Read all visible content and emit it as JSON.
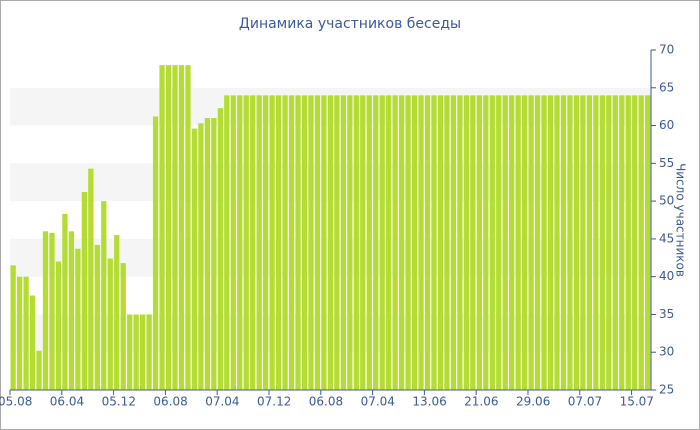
{
  "chart_data": {
    "type": "bar",
    "title": "Динамика участников беседы",
    "y_label": "Число участников",
    "categories": [
      "05.08",
      null,
      null,
      null,
      null,
      null,
      null,
      null,
      "06.04",
      null,
      null,
      null,
      null,
      null,
      null,
      null,
      "05.12",
      null,
      null,
      null,
      null,
      null,
      null,
      null,
      "06.08",
      null,
      null,
      null,
      null,
      null,
      null,
      null,
      "07.04",
      null,
      null,
      null,
      null,
      null,
      null,
      null,
      "07.12",
      null,
      null,
      null,
      null,
      null,
      null,
      null,
      "06.08",
      null,
      null,
      null,
      null,
      null,
      null,
      null,
      "07.04",
      null,
      null,
      null,
      null,
      null,
      null,
      null,
      "13.06",
      null,
      null,
      null,
      null,
      null,
      null,
      null,
      "21.06",
      null,
      null,
      null,
      null,
      null,
      null,
      null,
      "29.06",
      null,
      null,
      null,
      null,
      null,
      null,
      null,
      "07.07",
      null,
      null,
      null,
      null,
      null,
      null,
      null,
      "15.07",
      null,
      null
    ],
    "values": [
      41.5,
      40,
      40,
      37.5,
      30.2,
      46,
      45.8,
      42,
      48.3,
      46,
      43.7,
      51.2,
      54.3,
      44.2,
      50,
      42.4,
      45.5,
      41.8,
      35,
      35,
      35,
      35,
      61.2,
      68,
      68,
      68,
      68,
      68,
      59.6,
      60.3,
      61,
      61,
      62.3,
      64,
      64,
      64,
      64,
      64,
      64,
      64,
      64,
      64,
      64,
      64,
      64,
      64,
      64,
      64,
      64,
      64,
      64,
      64,
      64,
      64,
      64,
      64,
      64,
      64,
      64,
      64,
      64,
      64,
      64,
      64,
      64,
      64,
      64,
      64,
      64,
      64,
      64,
      64,
      64,
      64,
      64,
      64,
      64,
      64,
      64,
      64,
      64,
      64,
      64,
      64,
      64,
      64,
      64,
      64,
      64,
      64,
      64,
      64,
      64,
      64,
      64,
      64,
      64,
      64,
      64
    ],
    "color": "#b5dc33",
    "ylim": [
      25,
      70
    ],
    "yticks": [
      25,
      30,
      35,
      40,
      45,
      50,
      55,
      60,
      65,
      70
    ],
    "y_axis_side": "right",
    "grid": "bands"
  }
}
